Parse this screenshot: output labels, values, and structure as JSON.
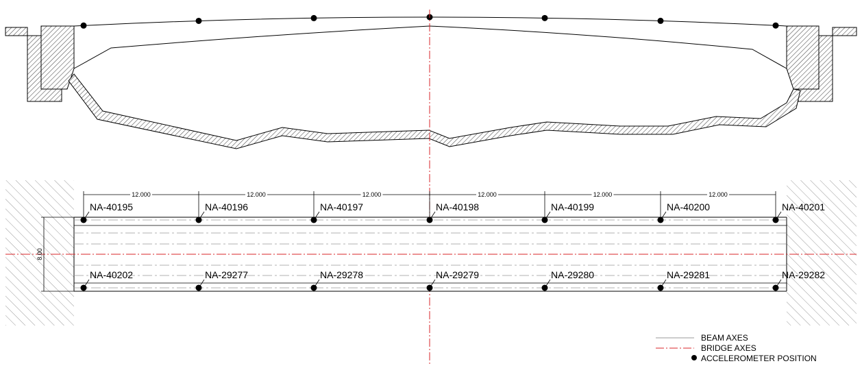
{
  "colors": {
    "line": "#000000",
    "beam_axes": "#999999",
    "bridge_axes": "#d8262a",
    "hatch": "#555555"
  },
  "elevation": {
    "accelerometer_count": 7
  },
  "plan": {
    "spacing_labels": [
      "12.000",
      "12.000",
      "12.000",
      "12.000",
      "12.000",
      "12.000"
    ],
    "width_label": "8.00",
    "top_sensors": [
      "NA-40195",
      "NA-40196",
      "NA-40197",
      "NA-40198",
      "NA-40199",
      "NA-40200",
      "NA-40201"
    ],
    "bottom_sensors": [
      "NA-40202",
      "NA-29277",
      "NA-29278",
      "NA-29279",
      "NA-29280",
      "NA-29281",
      "NA-29282"
    ]
  },
  "legend": {
    "beam_axes": "BEAM AXES",
    "bridge_axes": "BRIDGE AXES",
    "accelerometer": "ACCELEROMETER POSITION"
  }
}
